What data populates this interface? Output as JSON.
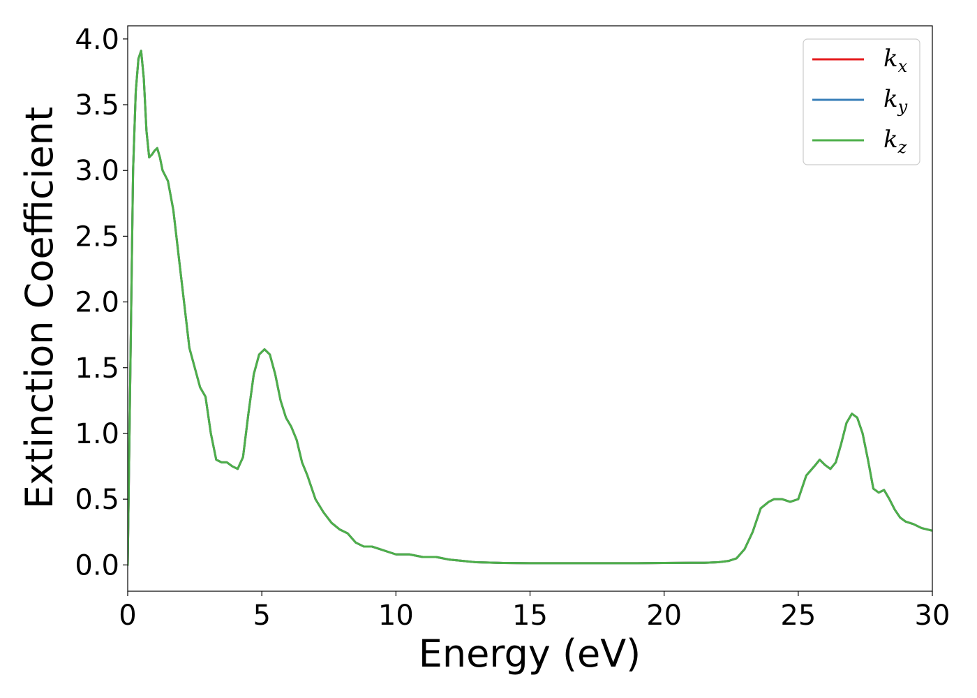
{
  "chart_data": {
    "type": "line",
    "title": "",
    "xlabel": "Energy (eV)",
    "ylabel": "Extinction Coefficient",
    "xlim": [
      0,
      30
    ],
    "ylim": [
      -0.2,
      4.1
    ],
    "xticks": [
      0,
      5,
      10,
      15,
      20,
      25,
      30
    ],
    "xtick_labels": [
      "0",
      "5",
      "10",
      "15",
      "20",
      "25",
      "30"
    ],
    "yticks": [
      0.0,
      0.5,
      1.0,
      1.5,
      2.0,
      2.5,
      3.0,
      3.5,
      4.0
    ],
    "ytick_labels": [
      "0.0",
      "0.5",
      "1.0",
      "1.5",
      "2.0",
      "2.5",
      "3.0",
      "3.5",
      "4.0"
    ],
    "grid": false,
    "legend_position": "top-right",
    "x": [
      0,
      0.1,
      0.2,
      0.3,
      0.4,
      0.5,
      0.6,
      0.7,
      0.8,
      0.9,
      1.0,
      1.1,
      1.2,
      1.3,
      1.4,
      1.5,
      1.7,
      1.9,
      2.1,
      2.3,
      2.5,
      2.7,
      2.9,
      3.1,
      3.3,
      3.5,
      3.7,
      3.9,
      4.1,
      4.3,
      4.5,
      4.7,
      4.9,
      5.1,
      5.3,
      5.5,
      5.7,
      5.9,
      6.1,
      6.3,
      6.5,
      6.7,
      7.0,
      7.3,
      7.6,
      7.9,
      8.2,
      8.5,
      8.8,
      9.1,
      9.4,
      9.7,
      10.0,
      10.5,
      11.0,
      11.5,
      12.0,
      12.5,
      13.0,
      14.0,
      15.0,
      16.0,
      17.0,
      18.0,
      19.0,
      20.0,
      21.0,
      21.5,
      22.0,
      22.4,
      22.7,
      23.0,
      23.3,
      23.6,
      23.9,
      24.1,
      24.4,
      24.7,
      25.0,
      25.3,
      25.6,
      25.8,
      26.0,
      26.2,
      26.4,
      26.6,
      26.8,
      27.0,
      27.2,
      27.4,
      27.6,
      27.8,
      28.0,
      28.2,
      28.4,
      28.6,
      28.8,
      29.0,
      29.3,
      29.6,
      30.0
    ],
    "series": [
      {
        "name": "k_x",
        "color": "#e41a1c",
        "values": [
          0.0,
          1.5,
          3.0,
          3.6,
          3.85,
          3.91,
          3.7,
          3.3,
          3.1,
          3.12,
          3.15,
          3.17,
          3.1,
          3.0,
          2.96,
          2.92,
          2.7,
          2.35,
          2.0,
          1.65,
          1.5,
          1.35,
          1.28,
          1.0,
          0.8,
          0.78,
          0.78,
          0.75,
          0.73,
          0.82,
          1.15,
          1.45,
          1.6,
          1.64,
          1.6,
          1.45,
          1.25,
          1.12,
          1.05,
          0.95,
          0.78,
          0.68,
          0.5,
          0.4,
          0.32,
          0.27,
          0.24,
          0.17,
          0.14,
          0.14,
          0.12,
          0.1,
          0.08,
          0.08,
          0.06,
          0.06,
          0.04,
          0.03,
          0.02,
          0.015,
          0.013,
          0.013,
          0.013,
          0.013,
          0.013,
          0.015,
          0.016,
          0.016,
          0.02,
          0.03,
          0.05,
          0.12,
          0.25,
          0.43,
          0.48,
          0.5,
          0.5,
          0.48,
          0.5,
          0.68,
          0.75,
          0.8,
          0.76,
          0.73,
          0.78,
          0.92,
          1.08,
          1.15,
          1.12,
          1.0,
          0.8,
          0.58,
          0.55,
          0.57,
          0.5,
          0.42,
          0.36,
          0.33,
          0.31,
          0.28,
          0.26
        ]
      },
      {
        "name": "k_y",
        "color": "#377eb8",
        "values": [
          0.0,
          1.5,
          3.0,
          3.6,
          3.85,
          3.91,
          3.7,
          3.3,
          3.1,
          3.12,
          3.15,
          3.17,
          3.1,
          3.0,
          2.96,
          2.92,
          2.7,
          2.35,
          2.0,
          1.65,
          1.5,
          1.35,
          1.28,
          1.0,
          0.8,
          0.78,
          0.78,
          0.75,
          0.73,
          0.82,
          1.15,
          1.45,
          1.6,
          1.64,
          1.6,
          1.45,
          1.25,
          1.12,
          1.05,
          0.95,
          0.78,
          0.68,
          0.5,
          0.4,
          0.32,
          0.27,
          0.24,
          0.17,
          0.14,
          0.14,
          0.12,
          0.1,
          0.08,
          0.08,
          0.06,
          0.06,
          0.04,
          0.03,
          0.02,
          0.015,
          0.013,
          0.013,
          0.013,
          0.013,
          0.013,
          0.015,
          0.016,
          0.016,
          0.02,
          0.03,
          0.05,
          0.12,
          0.25,
          0.43,
          0.48,
          0.5,
          0.5,
          0.48,
          0.5,
          0.68,
          0.75,
          0.8,
          0.76,
          0.73,
          0.78,
          0.92,
          1.08,
          1.15,
          1.12,
          1.0,
          0.8,
          0.58,
          0.55,
          0.57,
          0.5,
          0.42,
          0.36,
          0.33,
          0.31,
          0.28,
          0.26
        ]
      },
      {
        "name": "k_z",
        "color": "#4daf4a",
        "values": [
          0.0,
          1.5,
          3.0,
          3.6,
          3.85,
          3.91,
          3.7,
          3.3,
          3.1,
          3.12,
          3.15,
          3.17,
          3.1,
          3.0,
          2.96,
          2.92,
          2.7,
          2.35,
          2.0,
          1.65,
          1.5,
          1.35,
          1.28,
          1.0,
          0.8,
          0.78,
          0.78,
          0.75,
          0.73,
          0.82,
          1.15,
          1.45,
          1.6,
          1.64,
          1.6,
          1.45,
          1.25,
          1.12,
          1.05,
          0.95,
          0.78,
          0.68,
          0.5,
          0.4,
          0.32,
          0.27,
          0.24,
          0.17,
          0.14,
          0.14,
          0.12,
          0.1,
          0.08,
          0.08,
          0.06,
          0.06,
          0.04,
          0.03,
          0.02,
          0.015,
          0.013,
          0.013,
          0.013,
          0.013,
          0.013,
          0.015,
          0.016,
          0.016,
          0.02,
          0.03,
          0.05,
          0.12,
          0.25,
          0.43,
          0.48,
          0.5,
          0.5,
          0.48,
          0.5,
          0.68,
          0.75,
          0.8,
          0.76,
          0.73,
          0.78,
          0.92,
          1.08,
          1.15,
          1.12,
          1.0,
          0.8,
          0.58,
          0.55,
          0.57,
          0.5,
          0.42,
          0.36,
          0.33,
          0.31,
          0.28,
          0.26
        ]
      }
    ],
    "legend": [
      {
        "base": "k",
        "sub": "x",
        "color": "#e41a1c"
      },
      {
        "base": "k",
        "sub": "y",
        "color": "#377eb8"
      },
      {
        "base": "k",
        "sub": "z",
        "color": "#4daf4a"
      }
    ]
  }
}
